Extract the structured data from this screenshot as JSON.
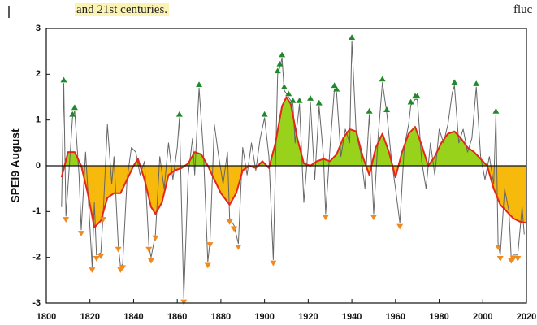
{
  "header": {
    "left_text": "and 21st centuries.",
    "right_text": "fluc"
  },
  "chart_data": {
    "type": "line",
    "y_label": "SPEI9 August",
    "xlim": [
      1800,
      2020
    ],
    "xticks": [
      1800,
      1820,
      1840,
      1860,
      1880,
      1900,
      1920,
      1940,
      1960,
      1980,
      2000,
      2020
    ],
    "ylim": [
      -3,
      3
    ],
    "yticks": [
      -3,
      -2,
      -1,
      0,
      1,
      2,
      3
    ],
    "zero_line": true,
    "series": [
      {
        "color": "#666666",
        "x": [
          1807,
          1808,
          1809,
          1811,
          1812,
          1813,
          1815,
          1816,
          1818,
          1819,
          1821,
          1822,
          1823,
          1825,
          1826,
          1828,
          1830,
          1831,
          1833,
          1834,
          1835,
          1837,
          1839,
          1841,
          1843,
          1845,
          1847,
          1848,
          1850,
          1852,
          1854,
          1856,
          1858,
          1860,
          1861,
          1863,
          1865,
          1867,
          1868,
          1870,
          1872,
          1874,
          1875,
          1877,
          1879,
          1881,
          1883,
          1884,
          1886,
          1888,
          1890,
          1892,
          1894,
          1896,
          1898,
          1900,
          1902,
          1904,
          1906,
          1907,
          1908,
          1909,
          1911,
          1913,
          1914,
          1916,
          1918,
          1920,
          1921,
          1923,
          1925,
          1927,
          1928,
          1930,
          1932,
          1933,
          1935,
          1937,
          1939,
          1940,
          1942,
          1944,
          1946,
          1948,
          1950,
          1952,
          1954,
          1956,
          1958,
          1960,
          1962,
          1964,
          1966,
          1967,
          1969,
          1970,
          1972,
          1974,
          1976,
          1978,
          1980,
          1982,
          1984,
          1986,
          1987,
          1989,
          1991,
          1993,
          1995,
          1997,
          1999,
          2001,
          2003,
          2005,
          2006,
          2007,
          2008,
          2010,
          2012,
          2013,
          2014,
          2016,
          2018,
          2019
        ],
        "values": [
          -0.9,
          1.8,
          -1.1,
          0.3,
          1.05,
          1.2,
          -0.2,
          -1.4,
          0.3,
          -0.5,
          -2.2,
          -0.8,
          -1.95,
          -1.9,
          -1.1,
          0.9,
          -0.4,
          0.2,
          -1.75,
          -2.2,
          -2.15,
          -0.3,
          0.4,
          0.3,
          -0.2,
          0.1,
          -1.75,
          -2.0,
          -1.5,
          0.2,
          -0.5,
          0.5,
          -0.3,
          0.4,
          1.05,
          -2.9,
          -0.2,
          0.6,
          -0.2,
          1.7,
          0.3,
          -2.1,
          -1.65,
          0.9,
          0.2,
          -0.4,
          0.3,
          -1.15,
          -1.3,
          -1.7,
          0.4,
          -0.2,
          0.5,
          -0.1,
          0.6,
          1.05,
          0.2,
          -2.05,
          2.0,
          2.15,
          2.35,
          1.65,
          1.5,
          1.35,
          0.5,
          1.35,
          -0.8,
          0.4,
          1.4,
          -0.3,
          1.3,
          0.2,
          -1.05,
          0.4,
          1.68,
          1.6,
          0.2,
          0.8,
          0.5,
          2.73,
          0.7,
          0.3,
          -0.5,
          1.12,
          -1.05,
          0.6,
          1.82,
          1.15,
          0.2,
          -0.5,
          -1.25,
          0.4,
          0.9,
          1.32,
          1.45,
          1.45,
          0.1,
          -0.5,
          0.5,
          -0.2,
          0.8,
          0.5,
          0.9,
          1.6,
          1.75,
          0.5,
          0.8,
          0.3,
          0.6,
          1.72,
          0.2,
          -0.3,
          0.2,
          -0.4,
          1.12,
          -1.7,
          -1.95,
          -0.5,
          -1.0,
          -2.0,
          -1.95,
          -1.95,
          -0.9,
          -1.5
        ]
      },
      {
        "color": "#e5261b",
        "fill_above": "#98d21a",
        "fill_below": "#f6b90c",
        "x": [
          1807,
          1810,
          1813,
          1816,
          1819,
          1822,
          1825,
          1828,
          1831,
          1834,
          1837,
          1840,
          1842,
          1845,
          1848,
          1850,
          1853,
          1856,
          1859,
          1862,
          1865,
          1868,
          1871,
          1874,
          1877,
          1880,
          1884,
          1887,
          1890,
          1893,
          1896,
          1899,
          1902,
          1905,
          1908,
          1910,
          1912,
          1915,
          1918,
          1921,
          1924,
          1927,
          1930,
          1933,
          1936,
          1939,
          1942,
          1945,
          1948,
          1951,
          1954,
          1957,
          1960,
          1963,
          1966,
          1969,
          1972,
          1975,
          1978,
          1981,
          1984,
          1987,
          1990,
          1993,
          1996,
          1999,
          2002,
          2005,
          2008,
          2011,
          2014,
          2017,
          2020
        ],
        "values": [
          -0.25,
          0.3,
          0.3,
          0.0,
          -0.6,
          -1.35,
          -1.2,
          -0.7,
          -0.6,
          -0.6,
          -0.3,
          0.0,
          0.15,
          -0.3,
          -0.9,
          -1.05,
          -0.8,
          -0.2,
          -0.1,
          -0.05,
          0.05,
          0.3,
          0.25,
          0.0,
          -0.3,
          -0.6,
          -0.85,
          -0.6,
          -0.1,
          0.0,
          -0.05,
          0.1,
          -0.05,
          0.5,
          1.3,
          1.5,
          1.35,
          0.6,
          0.05,
          0.0,
          0.1,
          0.15,
          0.1,
          0.25,
          0.6,
          0.8,
          0.75,
          0.2,
          -0.2,
          0.4,
          0.7,
          0.3,
          -0.25,
          0.3,
          0.7,
          0.85,
          0.45,
          0.0,
          0.2,
          0.5,
          0.7,
          0.75,
          0.6,
          0.4,
          0.3,
          0.15,
          0.0,
          -0.5,
          -0.85,
          -1.0,
          -1.15,
          -1.22,
          -1.25
        ]
      }
    ],
    "markers": [
      {
        "color": "#1e8b2a",
        "shape": "triangle-up",
        "x": [
          1808,
          1812,
          1813,
          1861,
          1870,
          1900,
          1906,
          1907,
          1908,
          1909,
          1911,
          1913,
          1916,
          1921,
          1925,
          1932,
          1933,
          1940,
          1948,
          1954,
          1956,
          1967,
          1969,
          1970,
          1987,
          1997,
          2006
        ],
        "values": [
          1.8,
          1.05,
          1.2,
          1.05,
          1.7,
          1.05,
          2.0,
          2.15,
          2.35,
          1.65,
          1.5,
          1.35,
          1.35,
          1.4,
          1.3,
          1.68,
          1.6,
          2.73,
          1.12,
          1.82,
          1.15,
          1.32,
          1.45,
          1.45,
          1.75,
          1.72,
          1.12
        ]
      },
      {
        "color": "#f08a1e",
        "shape": "triangle-down",
        "x": [
          1809,
          1816,
          1821,
          1823,
          1825,
          1826,
          1833,
          1834,
          1835,
          1847,
          1848,
          1850,
          1863,
          1874,
          1875,
          1884,
          1886,
          1888,
          1904,
          1928,
          1950,
          1962,
          2007,
          2008,
          2013,
          2014,
          2016
        ],
        "values": [
          -1.1,
          -1.4,
          -2.2,
          -1.95,
          -1.9,
          -1.1,
          -1.75,
          -2.2,
          -2.15,
          -1.75,
          -2.0,
          -1.5,
          -2.9,
          -2.1,
          -1.65,
          -1.15,
          -1.3,
          -1.7,
          -2.05,
          -1.05,
          -1.05,
          -1.25,
          -1.7,
          -1.95,
          -2.0,
          -1.95,
          -1.95
        ]
      }
    ]
  }
}
